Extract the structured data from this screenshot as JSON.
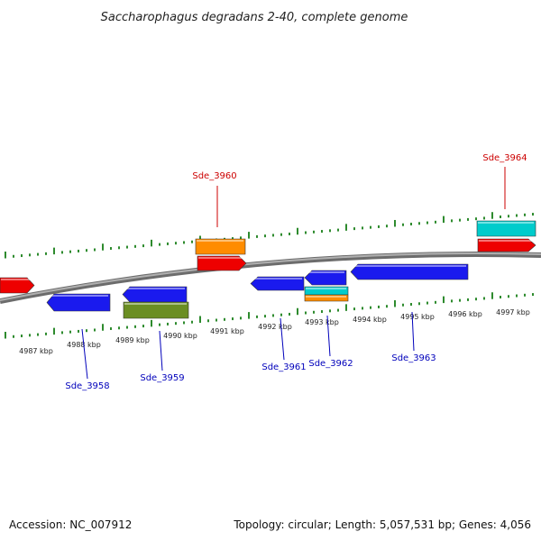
{
  "title": "Saccharophagus degradans 2-40, complete genome",
  "footer": {
    "accession": "Accession: NC_007912",
    "summary": "Topology: circular; Length: 5,057,531 bp; Genes: 4,056"
  },
  "colors": {
    "backbone": "#8a8a8a",
    "tick": "#2e8b2e",
    "forward_label": "#cc0000",
    "reverse_label": "#0000bb"
  },
  "ticks": [
    {
      "label": "4987 kbp"
    },
    {
      "label": "4988 kbp"
    },
    {
      "label": "4989 kbp"
    },
    {
      "label": "4990 kbp"
    },
    {
      "label": "4991 kbp"
    },
    {
      "label": "4992 kbp"
    },
    {
      "label": "4993 kbp"
    },
    {
      "label": "4994 kbp"
    },
    {
      "label": "4995 kbp"
    },
    {
      "label": "4996 kbp"
    },
    {
      "label": "4997 kbp"
    }
  ],
  "labels": [
    {
      "text": "Sde_3958",
      "strand": "reverse"
    },
    {
      "text": "Sde_3959",
      "strand": "reverse"
    },
    {
      "text": "Sde_3960",
      "strand": "forward"
    },
    {
      "text": "Sde_3961",
      "strand": "reverse"
    },
    {
      "text": "Sde_3962",
      "strand": "reverse"
    },
    {
      "text": "Sde_3963",
      "strand": "reverse"
    },
    {
      "text": "Sde_3964",
      "strand": "forward"
    }
  ],
  "features": [
    {
      "type": "gene",
      "color": "#ee0000"
    },
    {
      "type": "CDS",
      "color": "#1a1aee"
    },
    {
      "type": "CDS",
      "color": "#1a1aee"
    },
    {
      "type": "misc",
      "color": "#6b8e23"
    },
    {
      "type": "misc",
      "color": "#ff8c00"
    },
    {
      "type": "gene",
      "color": "#ee0000"
    },
    {
      "type": "CDS",
      "color": "#1a1aee"
    },
    {
      "type": "CDS",
      "color": "#1a1aee"
    },
    {
      "type": "misc",
      "color": "#00cccc"
    },
    {
      "type": "misc",
      "color": "#ff8c00"
    },
    {
      "type": "CDS",
      "color": "#1a1aee"
    },
    {
      "type": "misc",
      "color": "#00cccc"
    },
    {
      "type": "gene",
      "color": "#ee0000"
    }
  ]
}
